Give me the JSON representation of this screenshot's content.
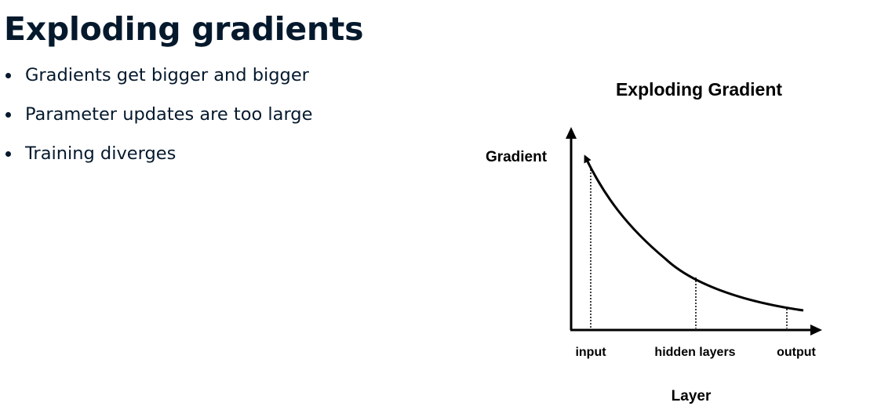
{
  "slide": {
    "title": "Exploding gradients",
    "bullets": [
      "Gradients get bigger and bigger",
      "Parameter updates are too large",
      "Training diverges"
    ]
  },
  "diagram": {
    "title": "Exploding Gradient",
    "y_axis_label": "Gradient",
    "x_axis_label": "Layer",
    "x_ticks": [
      "input",
      "hidden layers",
      "output"
    ],
    "colors": {
      "text": "#05192d",
      "diagram": "#000000"
    }
  }
}
